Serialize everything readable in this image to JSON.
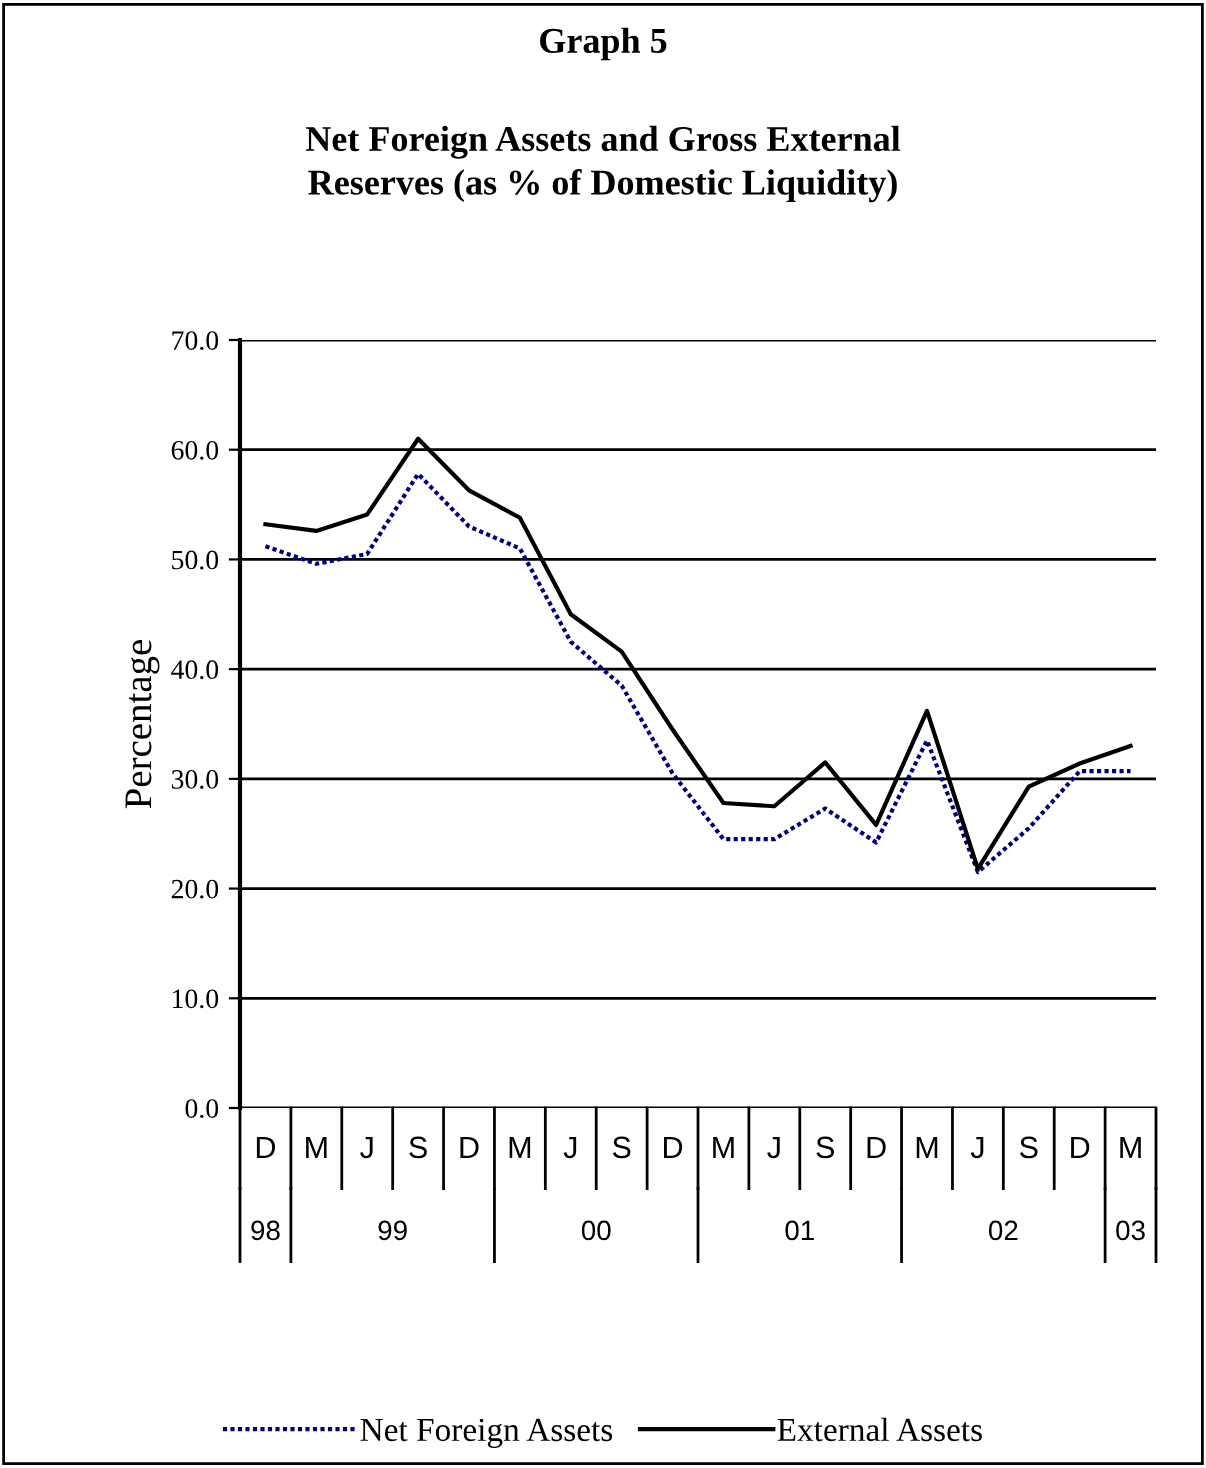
{
  "chart_data": {
    "type": "line",
    "title": "Graph 5",
    "subtitle": "Net Foreign Assets and Gross External\nReserves (as % of Domestic Liquidity)",
    "ylabel": "Percentage",
    "categories": [
      "D",
      "M",
      "J",
      "S",
      "D",
      "M",
      "J",
      "S",
      "D",
      "M",
      "J",
      "S",
      "D",
      "M",
      "J",
      "S",
      "D",
      "M"
    ],
    "annotations": [
      "98",
      "99",
      "00",
      "01",
      "02",
      "03"
    ],
    "series": [
      {
        "name": "Net Foreign Assets",
        "color": "#000080",
        "line_style": "dotted",
        "values": [
          51.2,
          49.6,
          50.5,
          57.8,
          53.0,
          51.0,
          42.5,
          38.5,
          30.5,
          24.5,
          24.5,
          27.3,
          24.2,
          33.5,
          21.5,
          25.5,
          30.7,
          30.7
        ]
      },
      {
        "name": "External Assets",
        "color": "#000000",
        "line_style": "solid",
        "values": [
          53.2,
          52.6,
          54.1,
          61.0,
          56.3,
          53.8,
          45.0,
          41.6,
          34.5,
          27.8,
          27.5,
          31.5,
          25.8,
          36.2,
          21.8,
          29.3,
          31.4,
          33.0
        ]
      }
    ],
    "ylim": [
      0,
      70
    ],
    "yticks": [
      {
        "value": 0,
        "label": "0.0"
      },
      {
        "value": 10,
        "label": "10.0"
      },
      {
        "value": 20,
        "label": "20.0"
      },
      {
        "value": 30,
        "label": "30.0"
      },
      {
        "value": 40,
        "label": "40.0"
      },
      {
        "value": 50,
        "label": "50.0"
      },
      {
        "value": 60,
        "label": "60.0"
      },
      {
        "value": 70,
        "label": "70.0"
      }
    ],
    "grid": "y",
    "legend": "bottom"
  }
}
